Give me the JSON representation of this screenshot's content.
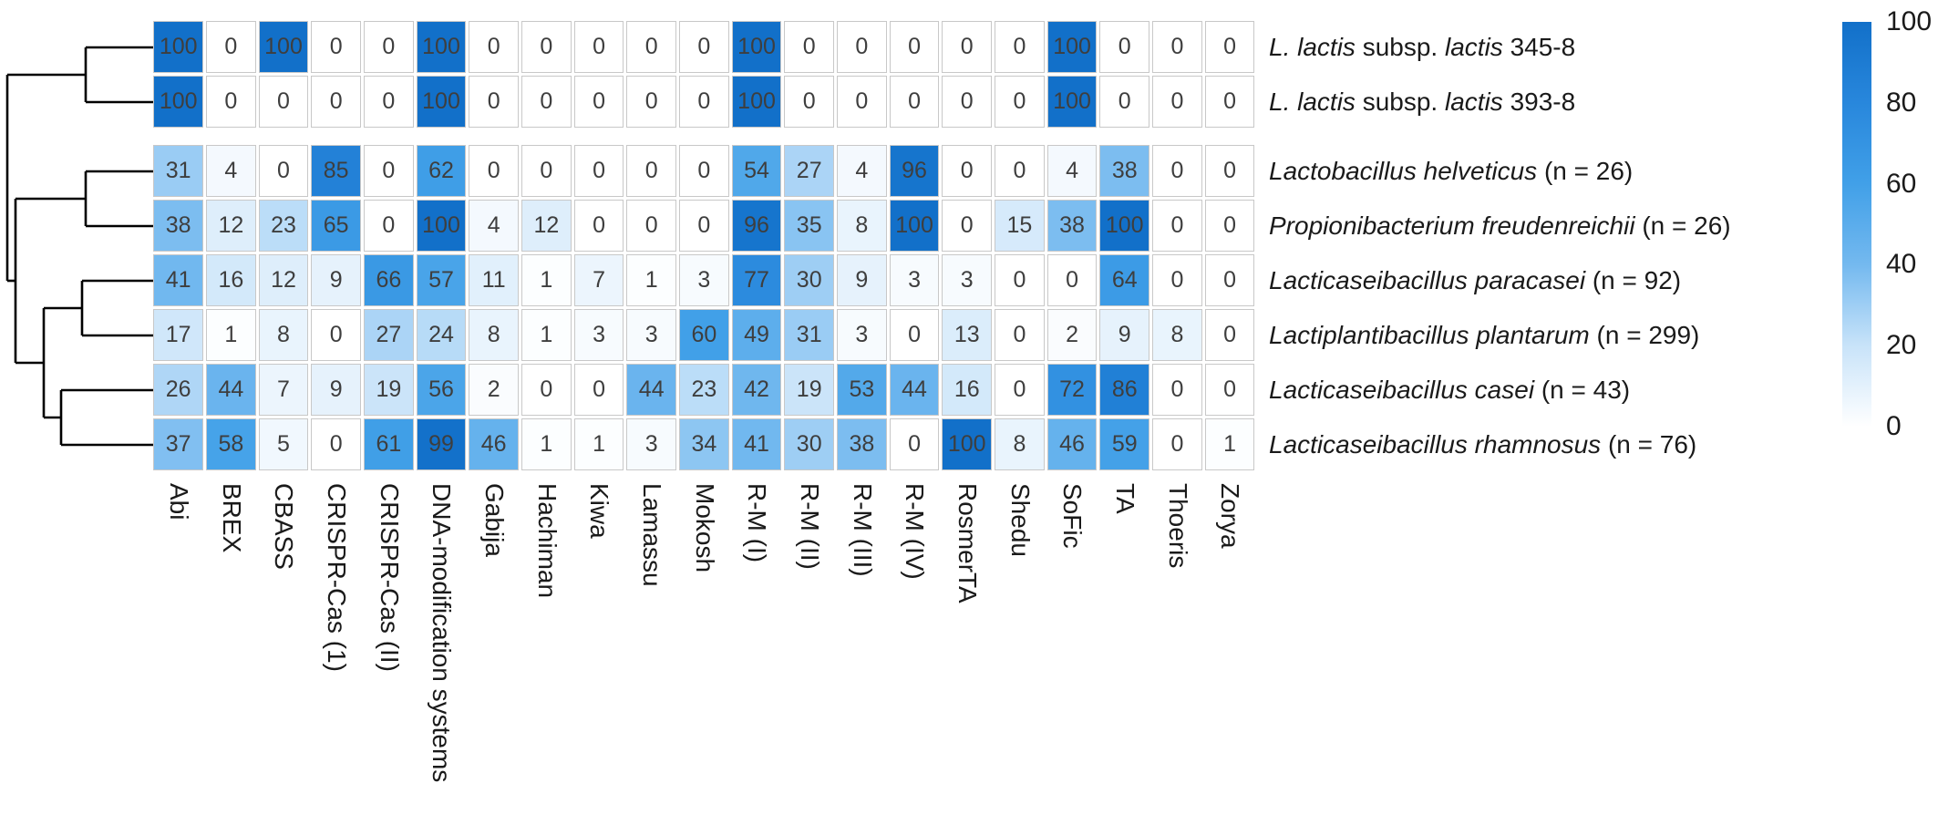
{
  "chart_data": {
    "type": "heatmap",
    "title": "",
    "xlabel": "",
    "ylabel": "",
    "value_range": [
      0,
      100
    ],
    "grid": true,
    "legend_position": "right",
    "columns": [
      "Abi",
      "BREX",
      "CBASS",
      "CRISPR-Cas (1)",
      "CRISPR-Cas (II)",
      "DNA-modification systems",
      "Gabija",
      "Hachiman",
      "Kiwa",
      "Lamassu",
      "Mokosh",
      "R-M (I)",
      "R-M (II)",
      "R-M (III)",
      "R-M (IV)",
      "RosmerTA",
      "Shedu",
      "SoFic",
      "TA",
      "Thoeris",
      "Zorya"
    ],
    "rows": [
      {
        "group": 1,
        "label_parts": [
          {
            "t": "L. lactis",
            "i": true
          },
          {
            "t": " subsp. ",
            "i": false
          },
          {
            "t": "lactis",
            "i": true
          },
          {
            "t": " 345-8",
            "i": false
          }
        ],
        "values": [
          100,
          0,
          100,
          0,
          0,
          100,
          0,
          0,
          0,
          0,
          0,
          100,
          0,
          0,
          0,
          0,
          0,
          100,
          0,
          0,
          0
        ]
      },
      {
        "group": 1,
        "label_parts": [
          {
            "t": "L. lactis",
            "i": true
          },
          {
            "t": " subsp. ",
            "i": false
          },
          {
            "t": "lactis",
            "i": true
          },
          {
            "t": " 393-8",
            "i": false
          }
        ],
        "values": [
          100,
          0,
          0,
          0,
          0,
          100,
          0,
          0,
          0,
          0,
          0,
          100,
          0,
          0,
          0,
          0,
          0,
          100,
          0,
          0,
          0
        ]
      },
      {
        "group": 2,
        "label_parts": [
          {
            "t": "Lactobacillus helveticus",
            "i": true
          },
          {
            "t": " (n = 26)",
            "i": false
          }
        ],
        "values": [
          31,
          4,
          0,
          85,
          0,
          62,
          0,
          0,
          0,
          0,
          0,
          54,
          27,
          4,
          96,
          0,
          0,
          4,
          38,
          0,
          0
        ]
      },
      {
        "group": 2,
        "label_parts": [
          {
            "t": "Propionibacterium freudenreichii",
            "i": true
          },
          {
            "t": " (n = 26)",
            "i": false
          }
        ],
        "values": [
          38,
          12,
          23,
          65,
          0,
          100,
          4,
          12,
          0,
          0,
          0,
          96,
          35,
          8,
          100,
          0,
          15,
          38,
          100,
          0,
          0
        ]
      },
      {
        "group": 2,
        "label_parts": [
          {
            "t": "Lacticaseibacillus paracasei",
            "i": true
          },
          {
            "t": " (n = 92)",
            "i": false
          }
        ],
        "values": [
          41,
          16,
          12,
          9,
          66,
          57,
          11,
          1,
          7,
          1,
          3,
          77,
          30,
          9,
          3,
          3,
          0,
          0,
          64,
          0,
          0
        ]
      },
      {
        "group": 2,
        "label_parts": [
          {
            "t": "Lactiplantibacillus plantarum",
            "i": true
          },
          {
            "t": " (n = 299)",
            "i": false
          }
        ],
        "values": [
          17,
          1,
          8,
          0,
          27,
          24,
          8,
          1,
          3,
          3,
          60,
          49,
          31,
          3,
          0,
          13,
          0,
          2,
          9,
          8,
          0
        ]
      },
      {
        "group": 2,
        "label_parts": [
          {
            "t": "Lacticaseibacillus casei",
            "i": true
          },
          {
            "t": " (n = 43)",
            "i": false
          }
        ],
        "values": [
          26,
          44,
          7,
          9,
          19,
          56,
          2,
          0,
          0,
          44,
          23,
          42,
          19,
          53,
          44,
          16,
          0,
          72,
          86,
          0,
          0
        ]
      },
      {
        "group": 2,
        "label_parts": [
          {
            "t": "Lacticaseibacillus rhamnosus",
            "i": true
          },
          {
            "t": " (n = 76)",
            "i": false
          }
        ],
        "values": [
          37,
          58,
          5,
          0,
          61,
          99,
          46,
          1,
          1,
          3,
          34,
          41,
          30,
          38,
          0,
          100,
          8,
          46,
          59,
          0,
          1
        ]
      }
    ],
    "colorbar": {
      "tick_labels": [
        "100",
        "80",
        "60",
        "40",
        "20",
        "0"
      ],
      "tick_values": [
        100,
        80,
        60,
        40,
        20,
        0
      ],
      "stops": [
        {
          "value": 0,
          "color": "#ffffff"
        },
        {
          "value": 20,
          "color": "#c8e3f9"
        },
        {
          "value": 40,
          "color": "#74b9ef"
        },
        {
          "value": 60,
          "color": "#41a0e8"
        },
        {
          "value": 80,
          "color": "#2887dc"
        },
        {
          "value": 100,
          "color": "#1270c9"
        }
      ]
    },
    "row_dendrogram": {
      "line_color": "#000000",
      "segments": [
        [
          94,
          52,
          168,
          52
        ],
        [
          94,
          112,
          168,
          112
        ],
        [
          94,
          52,
          94,
          112
        ],
        [
          8,
          82,
          94,
          82
        ],
        [
          94,
          188,
          168,
          188
        ],
        [
          94,
          248,
          168,
          248
        ],
        [
          94,
          188,
          94,
          248
        ],
        [
          17,
          218,
          94,
          218
        ],
        [
          90,
          308,
          168,
          308
        ],
        [
          90,
          368,
          168,
          368
        ],
        [
          90,
          308,
          90,
          368
        ],
        [
          48,
          338,
          90,
          338
        ],
        [
          67,
          428,
          168,
          428
        ],
        [
          67,
          488,
          168,
          488
        ],
        [
          67,
          428,
          67,
          488
        ],
        [
          48,
          458,
          67,
          458
        ],
        [
          48,
          338,
          48,
          458
        ],
        [
          17,
          398,
          48,
          398
        ],
        [
          17,
          218,
          17,
          398
        ],
        [
          8,
          308,
          17,
          308
        ],
        [
          8,
          82,
          8,
          308
        ]
      ]
    },
    "cell_text_color": "#3e3e3e",
    "cell_border_color": "#c8c8c8"
  }
}
